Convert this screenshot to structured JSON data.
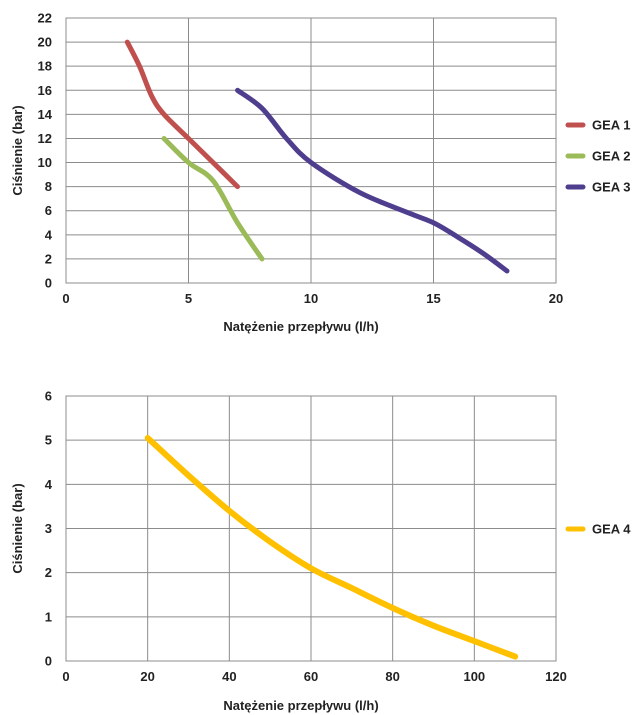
{
  "chart_data": [
    {
      "type": "line",
      "title": "",
      "xlabel": "Natężenie przepływu (l/h)",
      "ylabel": "Ciśnienie (bar)",
      "xlim": [
        0,
        20
      ],
      "ylim": [
        0,
        22
      ],
      "x_ticks": [
        0,
        5,
        10,
        15,
        20
      ],
      "y_ticks": [
        0,
        2,
        4,
        6,
        8,
        10,
        12,
        14,
        16,
        18,
        20,
        22
      ],
      "grid": true,
      "legend_position": "right",
      "series": [
        {
          "name": "GEA 1",
          "color": "#c0504d",
          "x": [
            2.5,
            3.0,
            3.5,
            4.0,
            5.0,
            6.0,
            7.0
          ],
          "y": [
            20,
            18,
            15.5,
            14,
            12,
            10,
            8
          ]
        },
        {
          "name": "GEA 2",
          "color": "#9bbb59",
          "x": [
            4.0,
            5.0,
            6.0,
            7.0,
            8.0
          ],
          "y": [
            12,
            10,
            8.5,
            5,
            2
          ]
        },
        {
          "name": "GEA 3",
          "color": "#4f3e8e",
          "x": [
            7.0,
            8.0,
            9.0,
            10.0,
            12.0,
            14.0,
            15.0,
            16.0,
            17.0,
            18.0
          ],
          "y": [
            16,
            14.5,
            12,
            10,
            7.5,
            5.8,
            5,
            3.8,
            2.5,
            1
          ]
        }
      ]
    },
    {
      "type": "line",
      "title": "",
      "xlabel": "Natężenie przepływu (l/h)",
      "ylabel": "Ciśnienie (bar)",
      "xlim": [
        0,
        120
      ],
      "ylim": [
        0,
        6
      ],
      "x_ticks": [
        0,
        20,
        40,
        60,
        80,
        100,
        120
      ],
      "y_ticks": [
        0,
        1,
        2,
        3,
        4,
        5,
        6
      ],
      "grid": true,
      "legend_position": "right",
      "series": [
        {
          "name": "GEA 4",
          "color": "#ffc000",
          "x": [
            20,
            30,
            40,
            50,
            60,
            70,
            80,
            90,
            100,
            110
          ],
          "y": [
            5.05,
            4.2,
            3.4,
            2.7,
            2.1,
            1.65,
            1.2,
            0.8,
            0.45,
            0.1
          ]
        }
      ]
    }
  ]
}
